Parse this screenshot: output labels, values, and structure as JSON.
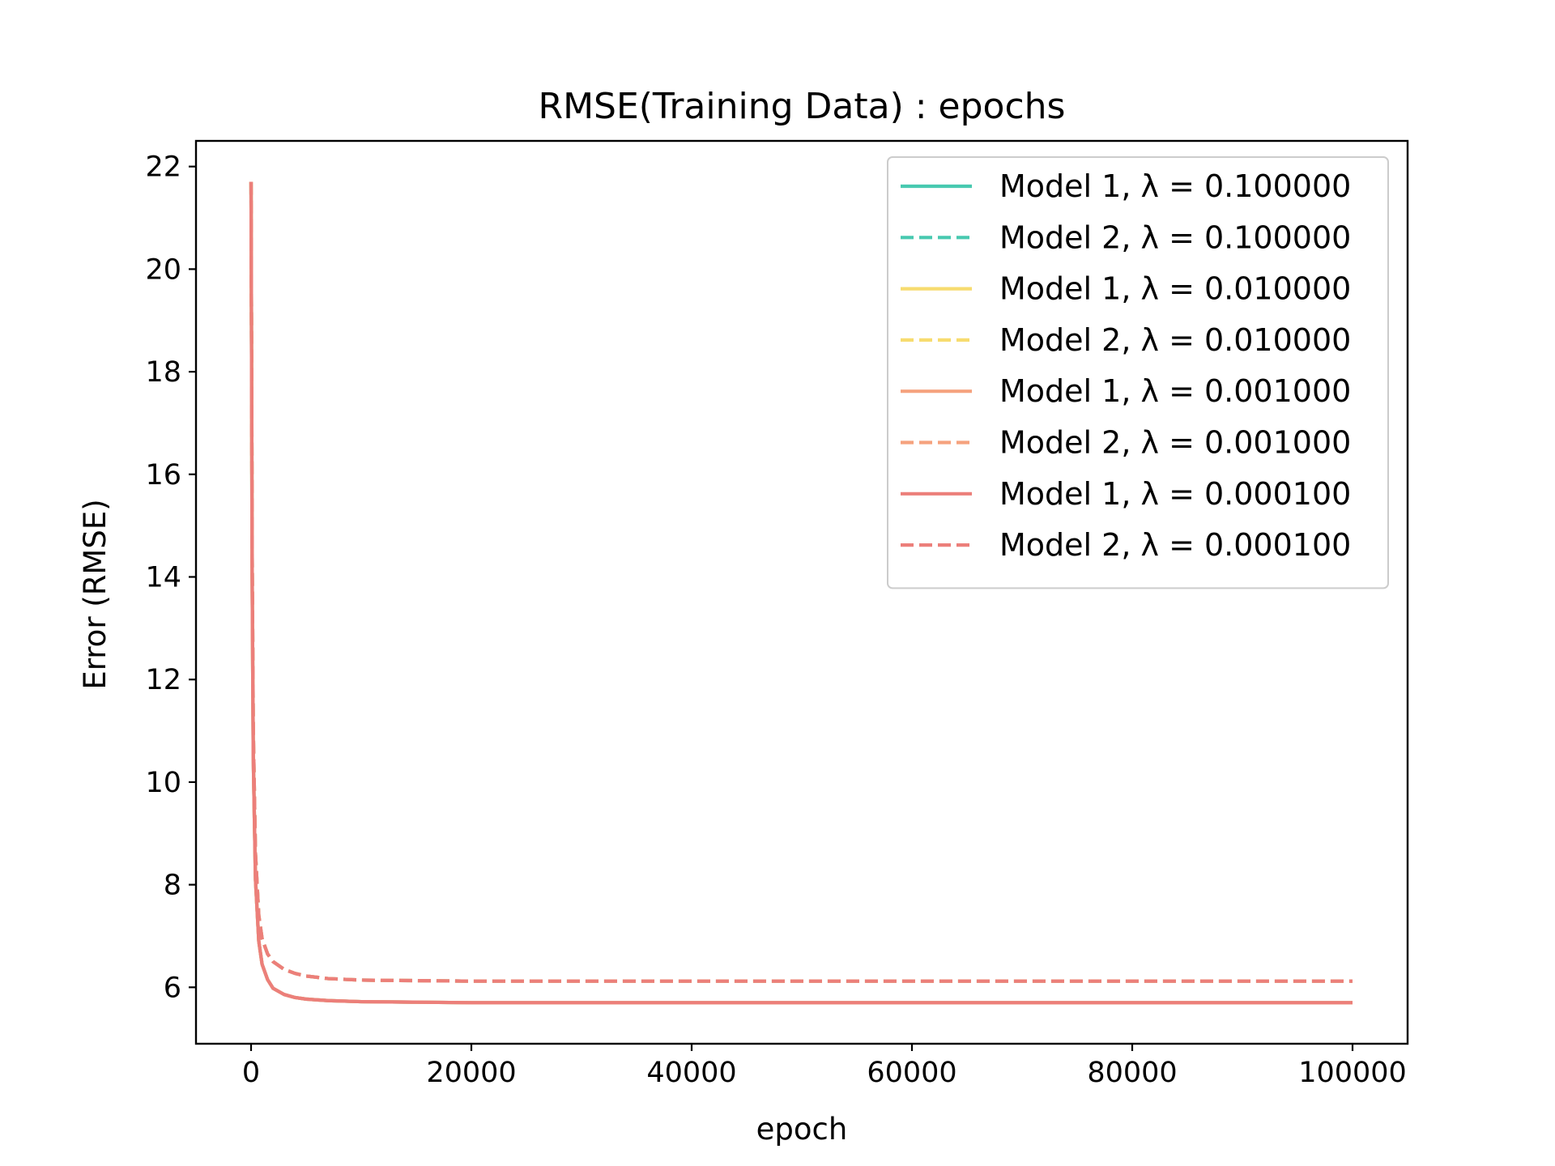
{
  "chart_data": {
    "type": "line",
    "title": "RMSE(Training Data) : epochs",
    "xlabel": "epoch",
    "ylabel": "Error (RMSE)",
    "xlim": [
      -5000,
      105000
    ],
    "ylim": [
      4.9,
      22.5
    ],
    "xticks": [
      0,
      20000,
      40000,
      60000,
      80000,
      100000
    ],
    "yticks": [
      6,
      8,
      10,
      12,
      14,
      16,
      18,
      20,
      22
    ],
    "legend": {
      "placement": "top-right",
      "entries": [
        {
          "label": "Model 1, λ = 0.100000",
          "color": "#48c9b0",
          "dash": "solid"
        },
        {
          "label": "Model 2, λ = 0.100000",
          "color": "#48c9b0",
          "dash": "dashed"
        },
        {
          "label": "Model 1, λ = 0.010000",
          "color": "#f7dc6f",
          "dash": "solid"
        },
        {
          "label": "Model 2, λ = 0.010000",
          "color": "#f7dc6f",
          "dash": "dashed"
        },
        {
          "label": "Model 1, λ = 0.001000",
          "color": "#f5a27e",
          "dash": "solid"
        },
        {
          "label": "Model 2, λ = 0.001000",
          "color": "#f5a27e",
          "dash": "dashed"
        },
        {
          "label": "Model 1, λ = 0.000100",
          "color": "#ec7f7a",
          "dash": "solid"
        },
        {
          "label": "Model 2, λ = 0.000100",
          "color": "#ec7f7a",
          "dash": "dashed"
        }
      ]
    },
    "series": [
      {
        "color": "#48c9b0",
        "dash": "solid",
        "x": [
          0,
          100,
          200,
          400,
          700,
          1000,
          1500,
          2000,
          3000,
          4000,
          5000,
          7000,
          10000,
          15000,
          20000,
          30000,
          40000,
          60000,
          80000,
          100000
        ],
        "y": [
          21.7,
          14.0,
          10.5,
          8.1,
          6.9,
          6.45,
          6.15,
          5.98,
          5.86,
          5.8,
          5.77,
          5.74,
          5.72,
          5.71,
          5.7,
          5.7,
          5.7,
          5.7,
          5.7,
          5.7
        ]
      },
      {
        "color": "#48c9b0",
        "dash": "dashed",
        "x": [
          0,
          100,
          200,
          400,
          700,
          1000,
          1500,
          2000,
          3000,
          4000,
          5000,
          7000,
          10000,
          15000,
          20000,
          30000,
          40000,
          60000,
          80000,
          100000
        ],
        "y": [
          21.7,
          14.5,
          11.0,
          8.6,
          7.4,
          6.95,
          6.65,
          6.5,
          6.35,
          6.27,
          6.22,
          6.17,
          6.14,
          6.13,
          6.12,
          6.12,
          6.12,
          6.12,
          6.12,
          6.12
        ]
      },
      {
        "color": "#f7dc6f",
        "dash": "solid",
        "x": [
          0,
          100,
          200,
          400,
          700,
          1000,
          1500,
          2000,
          3000,
          4000,
          5000,
          7000,
          10000,
          15000,
          20000,
          30000,
          40000,
          60000,
          80000,
          100000
        ],
        "y": [
          21.7,
          14.0,
          10.5,
          8.1,
          6.9,
          6.45,
          6.15,
          5.98,
          5.86,
          5.8,
          5.77,
          5.74,
          5.72,
          5.71,
          5.7,
          5.7,
          5.7,
          5.7,
          5.7,
          5.7
        ]
      },
      {
        "color": "#f7dc6f",
        "dash": "dashed",
        "x": [
          0,
          100,
          200,
          400,
          700,
          1000,
          1500,
          2000,
          3000,
          4000,
          5000,
          7000,
          10000,
          15000,
          20000,
          30000,
          40000,
          60000,
          80000,
          100000
        ],
        "y": [
          21.7,
          14.5,
          11.0,
          8.6,
          7.4,
          6.95,
          6.65,
          6.5,
          6.35,
          6.27,
          6.22,
          6.17,
          6.14,
          6.13,
          6.12,
          6.12,
          6.12,
          6.12,
          6.12,
          6.12
        ]
      },
      {
        "color": "#f5a27e",
        "dash": "solid",
        "x": [
          0,
          100,
          200,
          400,
          700,
          1000,
          1500,
          2000,
          3000,
          4000,
          5000,
          7000,
          10000,
          15000,
          20000,
          30000,
          40000,
          60000,
          80000,
          100000
        ],
        "y": [
          21.7,
          14.0,
          10.5,
          8.1,
          6.9,
          6.45,
          6.15,
          5.98,
          5.86,
          5.8,
          5.77,
          5.74,
          5.72,
          5.71,
          5.7,
          5.7,
          5.7,
          5.7,
          5.7,
          5.7
        ]
      },
      {
        "color": "#f5a27e",
        "dash": "dashed",
        "x": [
          0,
          100,
          200,
          400,
          700,
          1000,
          1500,
          2000,
          3000,
          4000,
          5000,
          7000,
          10000,
          15000,
          20000,
          30000,
          40000,
          60000,
          80000,
          100000
        ],
        "y": [
          21.7,
          14.5,
          11.0,
          8.6,
          7.4,
          6.95,
          6.65,
          6.5,
          6.35,
          6.27,
          6.22,
          6.17,
          6.14,
          6.13,
          6.12,
          6.12,
          6.12,
          6.12,
          6.12,
          6.12
        ]
      },
      {
        "color": "#ec7f7a",
        "dash": "solid",
        "x": [
          0,
          100,
          200,
          400,
          700,
          1000,
          1500,
          2000,
          3000,
          4000,
          5000,
          7000,
          10000,
          15000,
          20000,
          30000,
          40000,
          60000,
          80000,
          100000
        ],
        "y": [
          21.7,
          14.0,
          10.5,
          8.1,
          6.9,
          6.45,
          6.15,
          5.98,
          5.86,
          5.8,
          5.77,
          5.74,
          5.72,
          5.71,
          5.7,
          5.7,
          5.7,
          5.7,
          5.7,
          5.7
        ]
      },
      {
        "color": "#ec7f7a",
        "dash": "dashed",
        "x": [
          0,
          100,
          200,
          400,
          700,
          1000,
          1500,
          2000,
          3000,
          4000,
          5000,
          7000,
          10000,
          15000,
          20000,
          30000,
          40000,
          60000,
          80000,
          100000
        ],
        "y": [
          21.7,
          14.5,
          11.0,
          8.6,
          7.4,
          6.95,
          6.65,
          6.5,
          6.35,
          6.27,
          6.22,
          6.17,
          6.14,
          6.13,
          6.12,
          6.12,
          6.12,
          6.12,
          6.12,
          6.12
        ]
      }
    ],
    "grid": false
  }
}
